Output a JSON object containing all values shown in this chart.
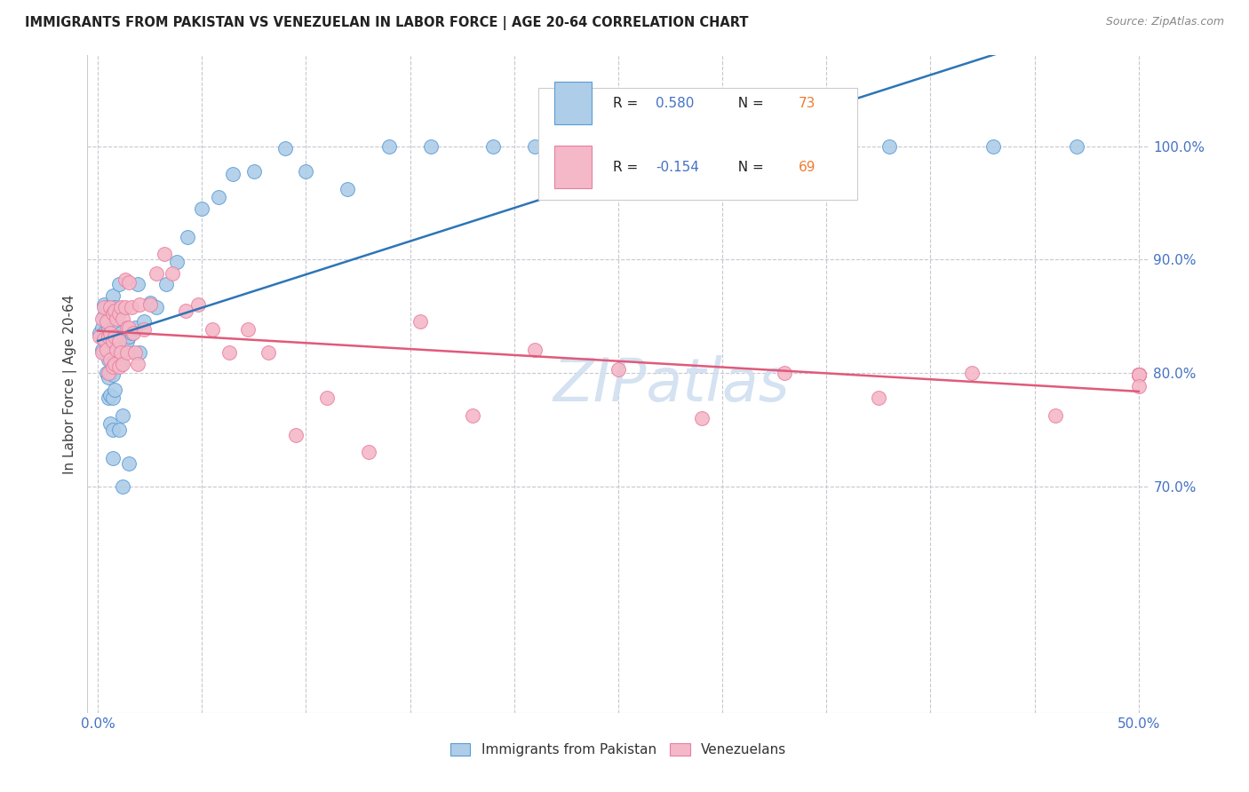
{
  "title": "IMMIGRANTS FROM PAKISTAN VS VENEZUELAN IN LABOR FORCE | AGE 20-64 CORRELATION CHART",
  "source": "Source: ZipAtlas.com",
  "ylabel": "In Labor Force | Age 20-64",
  "xlim": [
    -0.005,
    0.505
  ],
  "ylim": [
    0.5,
    1.08
  ],
  "xtick_positions": [
    0.0,
    0.05,
    0.1,
    0.15,
    0.2,
    0.25,
    0.3,
    0.35,
    0.4,
    0.45,
    0.5
  ],
  "xtick_labels": [
    "0.0%",
    "",
    "",
    "",
    "",
    "",
    "",
    "",
    "",
    "",
    "50.0%"
  ],
  "ytick_right_positions": [
    0.7,
    0.8,
    0.9,
    1.0
  ],
  "ytick_right_labels": [
    "70.0%",
    "80.0%",
    "90.0%",
    "100.0%"
  ],
  "ytick_grid_positions": [
    0.7,
    0.8,
    0.9,
    1.0
  ],
  "blue_face": "#aecde8",
  "blue_edge": "#5b9bd5",
  "pink_face": "#f4b8c8",
  "pink_edge": "#e87fa0",
  "blue_line": "#2e75b6",
  "pink_line": "#e05a7a",
  "grid_color": "#c8c8d0",
  "axis_label_color": "#4472c4",
  "ylabel_color": "#404040",
  "title_color": "#222222",
  "source_color": "#888888",
  "watermark_color": "#d0dff0",
  "pakistan_x": [
    0.001,
    0.002,
    0.002,
    0.003,
    0.003,
    0.003,
    0.003,
    0.004,
    0.004,
    0.004,
    0.004,
    0.005,
    0.005,
    0.005,
    0.005,
    0.005,
    0.005,
    0.006,
    0.006,
    0.006,
    0.006,
    0.006,
    0.007,
    0.007,
    0.007,
    0.007,
    0.007,
    0.007,
    0.008,
    0.008,
    0.008,
    0.008,
    0.009,
    0.009,
    0.009,
    0.01,
    0.01,
    0.01,
    0.011,
    0.011,
    0.012,
    0.012,
    0.013,
    0.014,
    0.015,
    0.015,
    0.016,
    0.018,
    0.019,
    0.02,
    0.022,
    0.025,
    0.028,
    0.033,
    0.038,
    0.043,
    0.05,
    0.058,
    0.065,
    0.075,
    0.09,
    0.1,
    0.12,
    0.14,
    0.16,
    0.19,
    0.21,
    0.24,
    0.27,
    0.32,
    0.38,
    0.43,
    0.47
  ],
  "pakistan_y": [
    0.835,
    0.82,
    0.84,
    0.818,
    0.835,
    0.85,
    0.86,
    0.8,
    0.825,
    0.845,
    0.858,
    0.778,
    0.796,
    0.812,
    0.825,
    0.838,
    0.85,
    0.755,
    0.78,
    0.8,
    0.818,
    0.835,
    0.725,
    0.75,
    0.778,
    0.798,
    0.818,
    0.868,
    0.785,
    0.808,
    0.84,
    0.858,
    0.81,
    0.832,
    0.855,
    0.75,
    0.818,
    0.878,
    0.808,
    0.835,
    0.7,
    0.762,
    0.82,
    0.828,
    0.72,
    0.832,
    0.835,
    0.84,
    0.878,
    0.818,
    0.845,
    0.862,
    0.858,
    0.878,
    0.898,
    0.92,
    0.945,
    0.955,
    0.975,
    0.978,
    0.998,
    0.978,
    0.962,
    1.0,
    1.0,
    1.0,
    1.0,
    1.0,
    1.0,
    1.0,
    1.0,
    1.0,
    1.0
  ],
  "venezuela_x": [
    0.001,
    0.002,
    0.002,
    0.003,
    0.003,
    0.004,
    0.004,
    0.005,
    0.005,
    0.006,
    0.006,
    0.006,
    0.007,
    0.007,
    0.007,
    0.008,
    0.008,
    0.008,
    0.009,
    0.009,
    0.01,
    0.01,
    0.01,
    0.011,
    0.011,
    0.012,
    0.012,
    0.013,
    0.013,
    0.014,
    0.014,
    0.015,
    0.015,
    0.016,
    0.017,
    0.018,
    0.019,
    0.02,
    0.022,
    0.025,
    0.028,
    0.032,
    0.036,
    0.042,
    0.048,
    0.055,
    0.063,
    0.072,
    0.082,
    0.095,
    0.11,
    0.13,
    0.155,
    0.18,
    0.21,
    0.25,
    0.29,
    0.33,
    0.375,
    0.42,
    0.46,
    0.5,
    0.5,
    0.5,
    0.5,
    0.5,
    0.5,
    0.5,
    0.5
  ],
  "venezuela_y": [
    0.832,
    0.818,
    0.848,
    0.83,
    0.858,
    0.82,
    0.845,
    0.8,
    0.832,
    0.812,
    0.835,
    0.858,
    0.805,
    0.828,
    0.852,
    0.808,
    0.832,
    0.855,
    0.82,
    0.848,
    0.805,
    0.828,
    0.852,
    0.818,
    0.858,
    0.808,
    0.848,
    0.858,
    0.882,
    0.84,
    0.818,
    0.88,
    0.84,
    0.858,
    0.835,
    0.818,
    0.808,
    0.86,
    0.838,
    0.86,
    0.888,
    0.905,
    0.888,
    0.855,
    0.86,
    0.838,
    0.818,
    0.838,
    0.818,
    0.745,
    0.778,
    0.73,
    0.845,
    0.762,
    0.82,
    0.803,
    0.76,
    0.8,
    0.778,
    0.8,
    0.762,
    0.798,
    0.798,
    0.798,
    0.798,
    0.798,
    0.798,
    0.798,
    0.788
  ]
}
